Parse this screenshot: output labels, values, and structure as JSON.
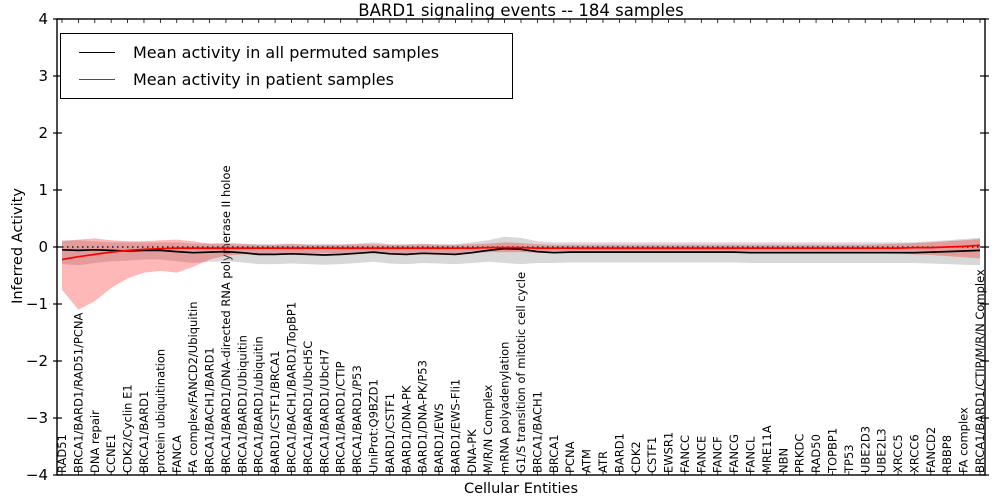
{
  "title": "BARD1 signaling events -- 184 samples",
  "legend": {
    "entries": [
      {
        "label": "Mean activity in all permuted samples",
        "color": "#000000"
      },
      {
        "label": "Mean activity in patient samples",
        "color": "#ff0000"
      }
    ]
  },
  "chart_data": {
    "type": "line",
    "title": "BARD1 signaling events -- 184 samples",
    "xlabel": "Cellular Entities",
    "ylabel": "Inferred Activity",
    "ylim": [
      -4,
      4
    ],
    "yticks": [
      4,
      3,
      2,
      1,
      0,
      -1,
      -2,
      -3,
      -4
    ],
    "grid": false,
    "legend_position": "upper left",
    "reference_line": {
      "y": 0,
      "style": "dotted",
      "color": "#000000"
    },
    "categories": [
      "RAD51",
      "BRCA1/BARD1/RAD51/PCNA",
      "DNA repair",
      "CCNE1",
      "CDK2/Cyclin E1",
      "BRCA1/BARD1",
      "protein ubiquitination",
      "FANCA",
      "FA complex/FANCD2/Ubiquitin",
      "BRCA1/BACH1/BARD1",
      "BRCA1/BARD1/DNA-directed RNA polymerase II holoe",
      "BRCA1/BARD1/Ubiquitin",
      "BRCA1/BARD1/ubiquitin",
      "BARD1/CSTF1/BRCA1",
      "BRCA1/BACH1/BARD1/TopBP1",
      "BRCA1/BARD1/UbcH5C",
      "BRCA1/BARD1/UbcH7",
      "BRCA1/BARD1/CTIP",
      "BRCA1/BARD1/P53",
      "UniProt:Q9BZD1",
      "BARD1/CSTF1",
      "BARD1/DNA-PK",
      "BARD1/DNA-PK/P53",
      "BARD1/EWS",
      "BARD1/EWS-Fli1",
      "DNA-PK",
      "M/R/N Complex",
      "mRNA polyadenylation",
      "G1/S transition of mitotic cell cycle",
      "BRCA1/BACH1",
      "BRCA1",
      "PCNA",
      "ATM",
      "ATR",
      "BARD1",
      "CDK2",
      "CSTF1",
      "EWSR1",
      "FANCC",
      "FANCE",
      "FANCF",
      "FANCG",
      "FANCL",
      "MRE11A",
      "NBN",
      "PRKDC",
      "RAD50",
      "TOPBP1",
      "TP53",
      "UBE2D3",
      "UBE2L3",
      "XRCC5",
      "XRCC6",
      "FANCD2",
      "RBBP8",
      "FA complex",
      "BRCA1/BARD1/CTIP/M/R/N Complex"
    ],
    "series": [
      {
        "name": "Mean activity in all permuted samples",
        "color": "#000000",
        "band_color": "#999999",
        "band_opacity": 0.38,
        "values": [
          -0.05,
          -0.06,
          -0.05,
          -0.06,
          -0.07,
          -0.06,
          -0.06,
          -0.08,
          -0.1,
          -0.09,
          -0.08,
          -0.1,
          -0.13,
          -0.13,
          -0.12,
          -0.13,
          -0.14,
          -0.13,
          -0.11,
          -0.09,
          -0.12,
          -0.13,
          -0.11,
          -0.12,
          -0.13,
          -0.1,
          -0.06,
          -0.03,
          -0.04,
          -0.08,
          -0.1,
          -0.09,
          -0.09,
          -0.09,
          -0.09,
          -0.09,
          -0.09,
          -0.09,
          -0.09,
          -0.09,
          -0.09,
          -0.09,
          -0.1,
          -0.1,
          -0.1,
          -0.1,
          -0.1,
          -0.1,
          -0.1,
          -0.1,
          -0.1,
          -0.1,
          -0.1,
          -0.09,
          -0.08,
          -0.07,
          -0.06
        ],
        "band_upper": [
          0.12,
          0.12,
          0.1,
          0.08,
          0.08,
          0.08,
          0.08,
          0.08,
          0.06,
          0.06,
          0.08,
          0.06,
          0.05,
          0.05,
          0.06,
          0.05,
          0.05,
          0.05,
          0.06,
          0.08,
          0.05,
          0.05,
          0.06,
          0.05,
          0.05,
          0.08,
          0.12,
          0.18,
          0.16,
          0.1,
          0.08,
          0.08,
          0.08,
          0.08,
          0.08,
          0.08,
          0.08,
          0.08,
          0.08,
          0.08,
          0.08,
          0.08,
          0.08,
          0.08,
          0.08,
          0.08,
          0.08,
          0.08,
          0.08,
          0.08,
          0.08,
          0.08,
          0.08,
          0.1,
          0.12,
          0.14,
          0.16
        ],
        "band_lower": [
          -0.3,
          -0.32,
          -0.28,
          -0.25,
          -0.24,
          -0.22,
          -0.22,
          -0.25,
          -0.28,
          -0.26,
          -0.25,
          -0.27,
          -0.3,
          -0.3,
          -0.29,
          -0.3,
          -0.31,
          -0.3,
          -0.28,
          -0.26,
          -0.29,
          -0.3,
          -0.28,
          -0.29,
          -0.3,
          -0.28,
          -0.26,
          -0.28,
          -0.3,
          -0.28,
          -0.28,
          -0.27,
          -0.27,
          -0.27,
          -0.27,
          -0.27,
          -0.27,
          -0.27,
          -0.27,
          -0.27,
          -0.27,
          -0.27,
          -0.28,
          -0.28,
          -0.28,
          -0.28,
          -0.28,
          -0.28,
          -0.28,
          -0.28,
          -0.28,
          -0.28,
          -0.28,
          -0.29,
          -0.3,
          -0.31,
          -0.32
        ]
      },
      {
        "name": "Mean activity in patient samples",
        "color": "#ff0000",
        "band_color": "#ff0000",
        "band_opacity": 0.28,
        "values": [
          -0.22,
          -0.17,
          -0.13,
          -0.09,
          -0.06,
          -0.04,
          -0.03,
          -0.02,
          -0.02,
          -0.02,
          -0.02,
          -0.02,
          -0.02,
          -0.02,
          -0.02,
          -0.02,
          -0.02,
          -0.02,
          -0.02,
          -0.02,
          -0.02,
          -0.02,
          -0.02,
          -0.02,
          -0.02,
          -0.02,
          -0.01,
          -0.01,
          -0.01,
          -0.02,
          -0.02,
          -0.02,
          -0.02,
          -0.02,
          -0.02,
          -0.02,
          -0.02,
          -0.02,
          -0.02,
          -0.02,
          -0.02,
          -0.02,
          -0.02,
          -0.02,
          -0.02,
          -0.02,
          -0.02,
          -0.02,
          -0.02,
          -0.02,
          -0.02,
          -0.02,
          -0.01,
          -0.01,
          0.0,
          0.01,
          0.03
        ],
        "band_upper": [
          0.1,
          0.13,
          0.15,
          0.12,
          0.1,
          0.1,
          0.12,
          0.13,
          0.1,
          0.06,
          0.05,
          0.05,
          0.04,
          0.04,
          0.05,
          0.04,
          0.04,
          0.04,
          0.05,
          0.05,
          0.04,
          0.04,
          0.05,
          0.04,
          0.04,
          0.05,
          0.06,
          0.08,
          0.07,
          0.05,
          0.04,
          0.04,
          0.04,
          0.04,
          0.04,
          0.04,
          0.04,
          0.04,
          0.04,
          0.04,
          0.04,
          0.04,
          0.04,
          0.04,
          0.04,
          0.04,
          0.04,
          0.04,
          0.04,
          0.04,
          0.05,
          0.06,
          0.07,
          0.08,
          0.1,
          0.12,
          0.14
        ],
        "band_lower": [
          -0.75,
          -1.1,
          -0.95,
          -0.72,
          -0.55,
          -0.45,
          -0.42,
          -0.45,
          -0.35,
          -0.22,
          -0.15,
          -0.13,
          -0.12,
          -0.11,
          -0.12,
          -0.11,
          -0.11,
          -0.11,
          -0.11,
          -0.1,
          -0.11,
          -0.11,
          -0.1,
          -0.11,
          -0.11,
          -0.1,
          -0.09,
          -0.09,
          -0.09,
          -0.1,
          -0.1,
          -0.1,
          -0.1,
          -0.1,
          -0.1,
          -0.1,
          -0.1,
          -0.1,
          -0.1,
          -0.1,
          -0.1,
          -0.1,
          -0.1,
          -0.1,
          -0.1,
          -0.1,
          -0.1,
          -0.1,
          -0.1,
          -0.1,
          -0.11,
          -0.12,
          -0.13,
          -0.14,
          -0.16,
          -0.18,
          -0.2
        ]
      }
    ]
  }
}
